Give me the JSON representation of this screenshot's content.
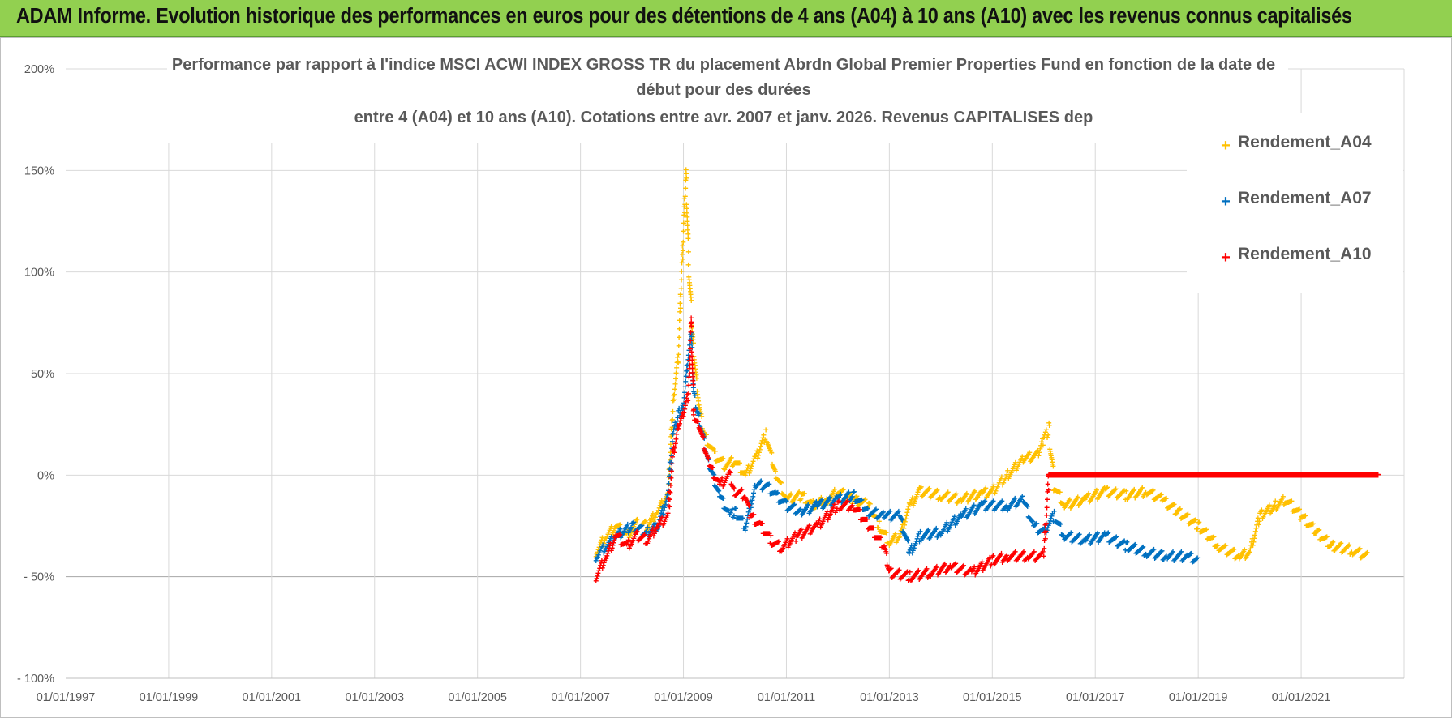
{
  "banner": {
    "text": "ADAM Informe. Evolution historique des performances en euros pour des détentions de 4 ans (A04) à 10 ans (A10) avec les revenus connus capitalisés",
    "color": "#92d050"
  },
  "chart_data": {
    "type": "scatter",
    "title": [
      "Performance par rapport à l'indice MSCI ACWI INDEX GROSS TR  du placement Abrdn Global Premier Properties Fund en fonction de la date de",
      "début pour des durées",
      "entre 4 (A04) et 10 ans (A10). Cotations entre avr. 2007 et janv. 2026. Revenus CAPITALISES dep"
    ],
    "xlabel": "",
    "ylabel": "",
    "x_range": [
      "1997-01-01",
      "2023-01-01"
    ],
    "ylim": [
      -100,
      200
    ],
    "y_ticks": [
      200,
      150,
      100,
      50,
      0,
      -50,
      -100
    ],
    "y_tick_labels": [
      "200%",
      "150%",
      "100%",
      "50%",
      "0%",
      "- 50%",
      "- 100%"
    ],
    "x_tick_labels": [
      "01/01/1997",
      "01/01/1999",
      "01/01/2001",
      "01/01/2003",
      "01/01/2005",
      "01/01/2007",
      "01/01/2009",
      "01/01/2011",
      "01/01/2013",
      "01/01/2015",
      "01/01/2017",
      "01/01/2019",
      "01/01/2021"
    ],
    "x_tick_years": [
      1997,
      1999,
      2001,
      2003,
      2005,
      2007,
      2009,
      2011,
      2013,
      2015,
      2017,
      2019,
      2021
    ],
    "legend_position": "top-right",
    "grid": true,
    "series": [
      {
        "name": "Rendement_A04",
        "color": "#ffc000",
        "points": [
          [
            2007.3,
            -38
          ],
          [
            2007.5,
            -30
          ],
          [
            2007.7,
            -25
          ],
          [
            2007.9,
            -30
          ],
          [
            2008.1,
            -24
          ],
          [
            2008.3,
            -25
          ],
          [
            2008.5,
            -18
          ],
          [
            2008.7,
            -10
          ],
          [
            2008.8,
            35
          ],
          [
            2008.9,
            60
          ],
          [
            2008.95,
            90
          ],
          [
            2009.0,
            120
          ],
          [
            2009.05,
            148
          ],
          [
            2009.1,
            105
          ],
          [
            2009.2,
            60
          ],
          [
            2009.3,
            35
          ],
          [
            2009.4,
            20
          ],
          [
            2009.6,
            10
          ],
          [
            2009.8,
            5
          ],
          [
            2010.0,
            7
          ],
          [
            2010.2,
            0
          ],
          [
            2010.4,
            8
          ],
          [
            2010.6,
            20
          ],
          [
            2010.8,
            0
          ],
          [
            2011.0,
            -12
          ],
          [
            2011.3,
            -10
          ],
          [
            2011.5,
            -15
          ],
          [
            2011.8,
            -12
          ],
          [
            2012.0,
            -8
          ],
          [
            2012.3,
            -12
          ],
          [
            2012.6,
            -15
          ],
          [
            2012.8,
            -25
          ],
          [
            2013.0,
            -33
          ],
          [
            2013.2,
            -30
          ],
          [
            2013.4,
            -15
          ],
          [
            2013.6,
            -8
          ],
          [
            2014.0,
            -10
          ],
          [
            2014.4,
            -12
          ],
          [
            2014.8,
            -9
          ],
          [
            2015.0,
            -8
          ],
          [
            2015.3,
            0
          ],
          [
            2015.6,
            8
          ],
          [
            2015.9,
            10
          ],
          [
            2016.0,
            18
          ],
          [
            2016.1,
            22
          ],
          [
            2016.2,
            -5
          ],
          [
            2016.4,
            -15
          ],
          [
            2016.8,
            -12
          ],
          [
            2017.2,
            -8
          ],
          [
            2017.6,
            -10
          ],
          [
            2018.0,
            -8
          ],
          [
            2018.3,
            -12
          ],
          [
            2018.6,
            -18
          ],
          [
            2019.0,
            -25
          ],
          [
            2019.4,
            -35
          ],
          [
            2019.8,
            -40
          ],
          [
            2020.0,
            -38
          ],
          [
            2020.2,
            -20
          ],
          [
            2020.5,
            -15
          ],
          [
            2020.7,
            -12
          ],
          [
            2021.0,
            -20
          ],
          [
            2021.3,
            -28
          ],
          [
            2021.6,
            -35
          ],
          [
            2022.0,
            -37
          ],
          [
            2022.3,
            -40
          ]
        ]
      },
      {
        "name": "Rendement_A07",
        "color": "#0070c0",
        "points": [
          [
            2007.3,
            -40
          ],
          [
            2007.5,
            -35
          ],
          [
            2007.7,
            -30
          ],
          [
            2008.0,
            -25
          ],
          [
            2008.3,
            -28
          ],
          [
            2008.5,
            -25
          ],
          [
            2008.7,
            -10
          ],
          [
            2008.8,
            20
          ],
          [
            2008.9,
            30
          ],
          [
            2009.0,
            35
          ],
          [
            2009.1,
            60
          ],
          [
            2009.15,
            70
          ],
          [
            2009.2,
            40
          ],
          [
            2009.3,
            28
          ],
          [
            2009.5,
            5
          ],
          [
            2009.7,
            -10
          ],
          [
            2009.9,
            -20
          ],
          [
            2010.0,
            -18
          ],
          [
            2010.2,
            -25
          ],
          [
            2010.4,
            -5
          ],
          [
            2010.6,
            -5
          ],
          [
            2010.8,
            -10
          ],
          [
            2011.0,
            -15
          ],
          [
            2011.3,
            -18
          ],
          [
            2011.6,
            -15
          ],
          [
            2012.0,
            -12
          ],
          [
            2012.3,
            -10
          ],
          [
            2012.6,
            -18
          ],
          [
            2012.9,
            -20
          ],
          [
            2013.2,
            -20
          ],
          [
            2013.4,
            -38
          ],
          [
            2013.6,
            -30
          ],
          [
            2014.0,
            -28
          ],
          [
            2014.4,
            -20
          ],
          [
            2014.8,
            -15
          ],
          [
            2015.0,
            -15
          ],
          [
            2015.3,
            -15
          ],
          [
            2015.6,
            -12
          ],
          [
            2015.8,
            -25
          ],
          [
            2016.0,
            -28
          ],
          [
            2016.2,
            -20
          ],
          [
            2016.4,
            -30
          ],
          [
            2016.8,
            -32
          ],
          [
            2017.2,
            -30
          ],
          [
            2017.6,
            -35
          ],
          [
            2018.0,
            -38
          ],
          [
            2018.4,
            -40
          ],
          [
            2018.8,
            -40
          ],
          [
            2019.0,
            -42
          ]
        ]
      },
      {
        "name": "Rendement_A10",
        "color": "#ff0000",
        "points": [
          [
            2007.3,
            -50
          ],
          [
            2007.5,
            -40
          ],
          [
            2007.7,
            -30
          ],
          [
            2007.9,
            -35
          ],
          [
            2008.1,
            -30
          ],
          [
            2008.3,
            -32
          ],
          [
            2008.5,
            -25
          ],
          [
            2008.7,
            -20
          ],
          [
            2008.8,
            10
          ],
          [
            2008.9,
            25
          ],
          [
            2009.0,
            30
          ],
          [
            2009.1,
            40
          ],
          [
            2009.15,
            75
          ],
          [
            2009.2,
            30
          ],
          [
            2009.3,
            25
          ],
          [
            2009.5,
            5
          ],
          [
            2009.7,
            -5
          ],
          [
            2009.9,
            0
          ],
          [
            2010.0,
            -8
          ],
          [
            2010.2,
            -10
          ],
          [
            2010.3,
            -20
          ],
          [
            2010.5,
            -25
          ],
          [
            2010.7,
            -32
          ],
          [
            2010.9,
            -36
          ],
          [
            2011.2,
            -30
          ],
          [
            2011.6,
            -25
          ],
          [
            2012.0,
            -15
          ],
          [
            2012.3,
            -15
          ],
          [
            2012.6,
            -25
          ],
          [
            2012.9,
            -35
          ],
          [
            2013.0,
            -48
          ],
          [
            2013.4,
            -50
          ],
          [
            2013.8,
            -48
          ],
          [
            2014.2,
            -45
          ],
          [
            2014.6,
            -48
          ],
          [
            2015.0,
            -42
          ],
          [
            2015.3,
            -40
          ],
          [
            2015.7,
            -40
          ],
          [
            2016.0,
            -40
          ],
          [
            2016.1,
            0
          ],
          [
            2017.0,
            0
          ],
          [
            2018.0,
            0
          ],
          [
            2019.0,
            0
          ],
          [
            2020.0,
            0
          ],
          [
            2021.0,
            0
          ],
          [
            2022.0,
            0
          ],
          [
            2022.5,
            0
          ]
        ]
      }
    ]
  }
}
